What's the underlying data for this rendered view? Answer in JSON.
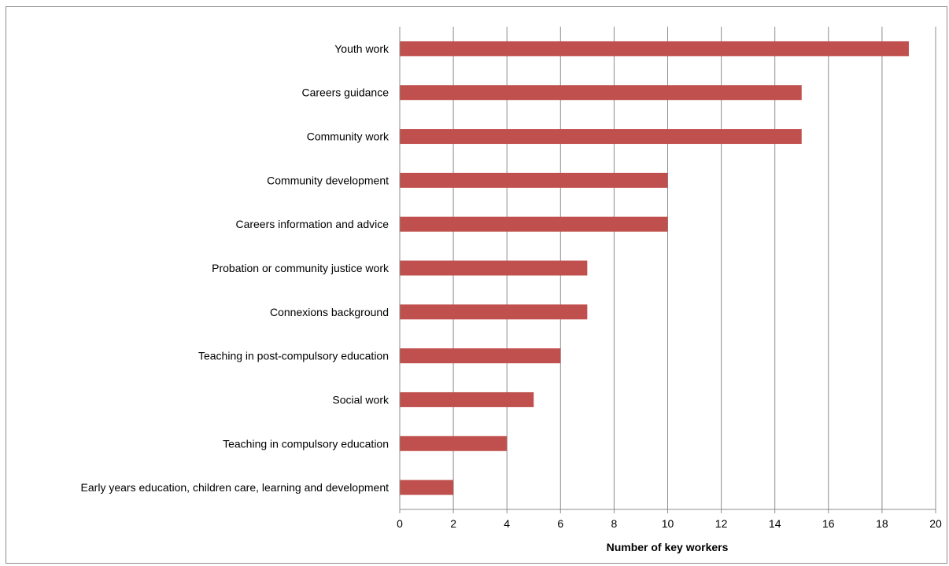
{
  "chart_data": {
    "type": "bar",
    "orientation": "horizontal",
    "categories": [
      "Youth work",
      "Careers guidance",
      "Community work",
      "Community development",
      "Careers information and advice",
      "Probation or community justice work",
      "Connexions background",
      "Teaching in post-compulsory education",
      "Social work",
      "Teaching in compulsory education",
      "Early years education, children care, learning and development"
    ],
    "values": [
      19,
      15,
      15,
      10,
      10,
      7,
      7,
      6,
      5,
      4,
      2
    ],
    "xlabel": "Number of key workers",
    "ylabel": "",
    "xlim": [
      0,
      20
    ],
    "xticks": [
      0,
      2,
      4,
      6,
      8,
      10,
      12,
      14,
      16,
      18,
      20
    ],
    "grid": "vertical",
    "legend": "none",
    "colors": {
      "bar": "#c0504d",
      "grid": "#8c8c8c",
      "axis": "#8c8c8c"
    }
  }
}
